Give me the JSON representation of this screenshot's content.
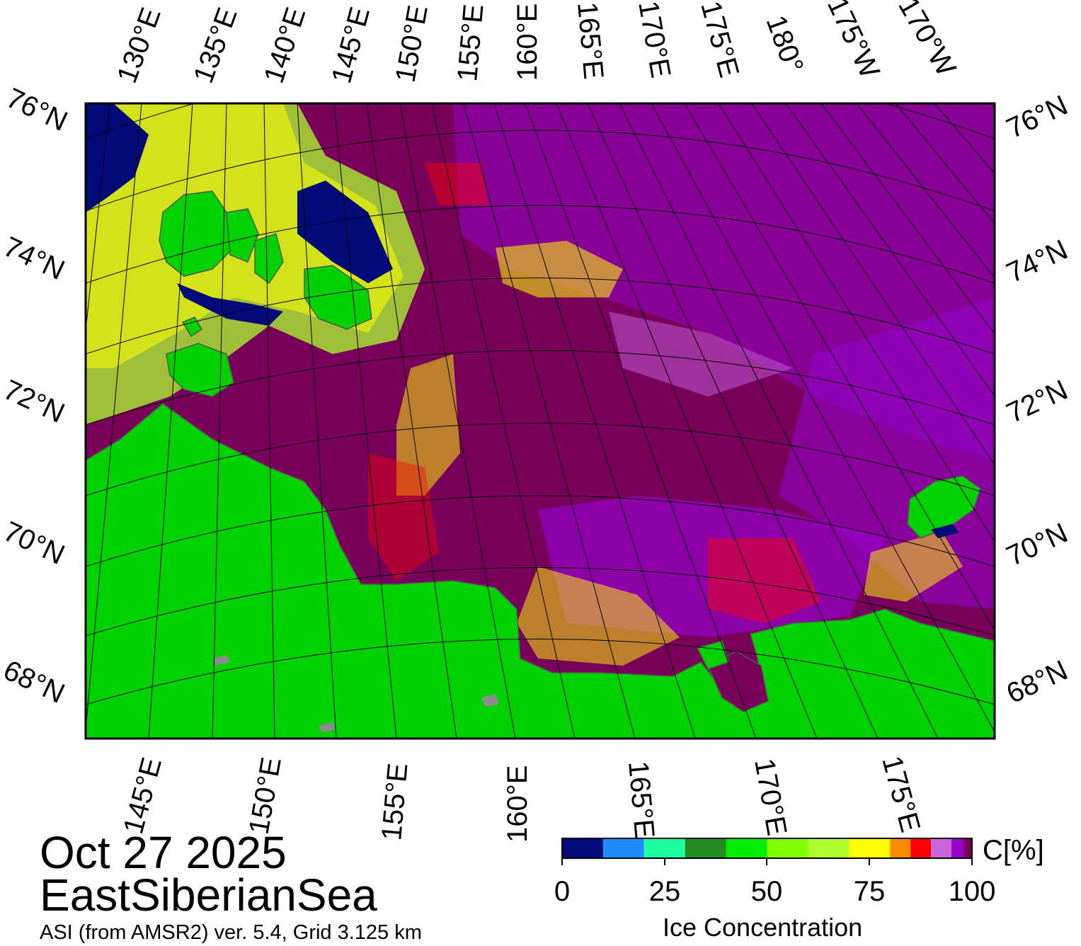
{
  "colors": {
    "land": "#00d200",
    "land_gray": "#8c8c8c",
    "open_water": "#000a78",
    "ice_full": "#78005a",
    "ice_high": "#9600c8",
    "ice_mid": "#be5ad2",
    "ice_warm": "#ff0000"
  },
  "map": {
    "top_lon_labels": [
      "130°E",
      "135°E",
      "140°E",
      "145°E",
      "150°E",
      "155°E",
      "160°E",
      "165°E",
      "170°E",
      "175°E",
      "180°",
      "175°W",
      "170°W"
    ],
    "bottom_lon_labels": [
      "145°E",
      "150°E",
      "155°E",
      "160°E",
      "165°E",
      "170°E",
      "175°E"
    ],
    "left_lat_labels": [
      "76°N",
      "74°N",
      "72°N",
      "70°N",
      "68°N"
    ],
    "right_lat_labels": [
      "76°N",
      "74°N",
      "72°N",
      "70°N",
      "68°N"
    ]
  },
  "colorbar": {
    "colors": [
      "#000a78",
      "#1e8cff",
      "#1effa0",
      "#228b22",
      "#00ee00",
      "#7fff00",
      "#adff2f",
      "#ffff00",
      "#ff8c00",
      "#ff0000",
      "#c864dc",
      "#9600c8",
      "#78005a"
    ],
    "ticks": [
      "0",
      "25",
      "50",
      "75",
      "100"
    ],
    "unit": "C[%]",
    "title": "Ice Concentration"
  },
  "footer": {
    "date": "Oct 27 2025",
    "region": "EastSiberianSea",
    "source": "ASI (from AMSR2) ver. 5.4,  Grid 3.125 km"
  }
}
